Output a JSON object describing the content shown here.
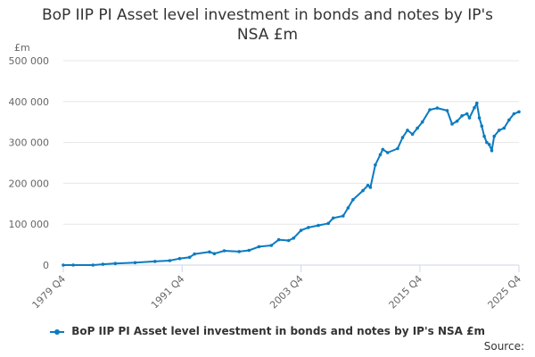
{
  "chart_data": {
    "type": "line",
    "title": "BoP IIP PI Asset level investment in bonds and notes by IP's NSA £m",
    "title_lines": [
      "BoP IIP PI Asset level investment in bonds and notes by IP's",
      "NSA £m"
    ],
    "ylabel": "£m",
    "ylim": [
      0,
      500000
    ],
    "y_ticks": [
      0,
      100000,
      200000,
      300000,
      400000,
      500000
    ],
    "y_tick_labels": [
      "0",
      "100 000",
      "200 000",
      "300 000",
      "400 000",
      "500 000"
    ],
    "x_tick_labels": [
      "1979 Q4",
      "1991 Q4",
      "2003 Q4",
      "2015 Q4",
      "2025 Q4"
    ],
    "x_tick_years": [
      1979.75,
      1991.75,
      2003.75,
      2015.75,
      2025.75
    ],
    "xlim": [
      1979.75,
      2025.75
    ],
    "grid": true,
    "legend_position": "bottom",
    "series": [
      {
        "name": "BoP IIP PI Asset level investment in bonds and notes by IP's NSA £m",
        "color": "#0b7bc0",
        "points": [
          [
            1979.75,
            0
          ],
          [
            1980.75,
            0
          ],
          [
            1982.75,
            0
          ],
          [
            1983.75,
            2000
          ],
          [
            1985,
            4000
          ],
          [
            1987,
            6000
          ],
          [
            1989,
            9000
          ],
          [
            1990.5,
            11000
          ],
          [
            1991.5,
            16000
          ],
          [
            1992.5,
            19000
          ],
          [
            1993,
            27000
          ],
          [
            1994.5,
            32000
          ],
          [
            1995,
            28000
          ],
          [
            1996,
            35000
          ],
          [
            1997.5,
            33000
          ],
          [
            1998.5,
            36000
          ],
          [
            1999.5,
            45000
          ],
          [
            2000.75,
            48000
          ],
          [
            2001.5,
            62000
          ],
          [
            2002.5,
            60000
          ],
          [
            2003,
            66000
          ],
          [
            2003.75,
            85000
          ],
          [
            2004.5,
            92000
          ],
          [
            2005.5,
            97000
          ],
          [
            2006.5,
            102000
          ],
          [
            2007,
            115000
          ],
          [
            2008,
            120000
          ],
          [
            2008.5,
            140000
          ],
          [
            2009,
            160000
          ],
          [
            2010,
            182000
          ],
          [
            2010.5,
            195000
          ],
          [
            2010.75,
            190000
          ],
          [
            2011.25,
            245000
          ],
          [
            2011.75,
            270000
          ],
          [
            2012,
            283000
          ],
          [
            2012.5,
            275000
          ],
          [
            2013.5,
            285000
          ],
          [
            2014,
            312000
          ],
          [
            2014.5,
            330000
          ],
          [
            2015,
            320000
          ],
          [
            2015.5,
            335000
          ],
          [
            2016,
            350000
          ],
          [
            2016.75,
            380000
          ],
          [
            2017.5,
            384000
          ],
          [
            2018.5,
            378000
          ],
          [
            2019,
            345000
          ],
          [
            2019.5,
            352000
          ],
          [
            2020,
            365000
          ],
          [
            2020.5,
            370000
          ],
          [
            2020.75,
            360000
          ],
          [
            2021.25,
            385000
          ],
          [
            2021.5,
            396000
          ],
          [
            2021.75,
            360000
          ],
          [
            2022,
            340000
          ],
          [
            2022.25,
            315000
          ],
          [
            2022.5,
            300000
          ],
          [
            2022.75,
            295000
          ],
          [
            2023,
            280000
          ],
          [
            2023.25,
            315000
          ],
          [
            2023.75,
            330000
          ],
          [
            2024.25,
            335000
          ],
          [
            2024.75,
            355000
          ],
          [
            2025.25,
            370000
          ],
          [
            2025.75,
            375000
          ]
        ]
      }
    ]
  },
  "legend": {
    "label": "BoP IIP PI Asset level investment in bonds and notes by IP's NSA £m"
  },
  "footer": {
    "source": "Source:"
  }
}
